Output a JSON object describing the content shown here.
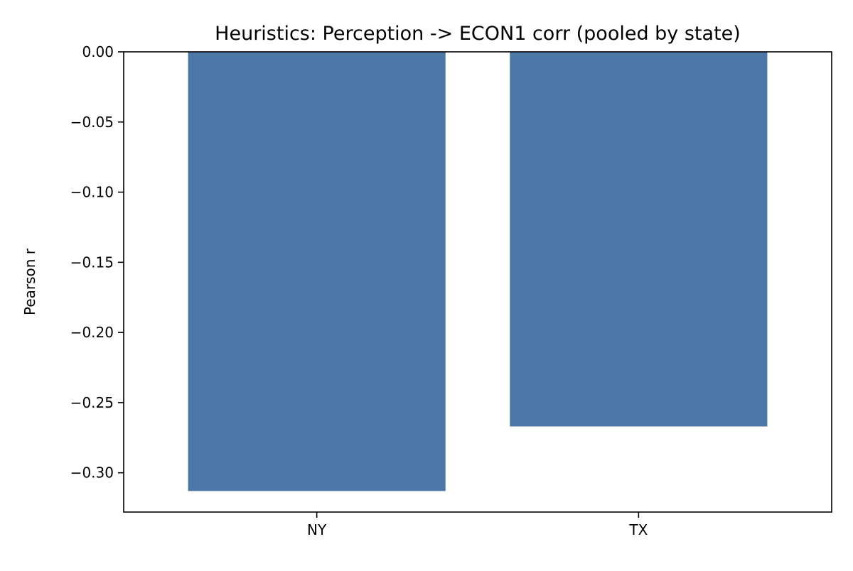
{
  "chart_data": {
    "type": "bar",
    "title": "Heuristics: Perception -> ECON1 corr (pooled by state)",
    "xlabel": "",
    "ylabel": "Pearson r",
    "categories": [
      "NY",
      "TX"
    ],
    "values": [
      -0.313,
      -0.267
    ],
    "ylim": [
      -0.328,
      0.0
    ],
    "yticks": [
      0.0,
      -0.05,
      -0.1,
      -0.15,
      -0.2,
      -0.25,
      -0.3
    ],
    "ytick_labels": [
      "0.00",
      "−0.05",
      "−0.10",
      "−0.15",
      "−0.20",
      "−0.25",
      "−0.30"
    ],
    "grid": false,
    "legend": "none",
    "colors": {
      "bar": "#4c78a8",
      "axis": "#000000",
      "background": "#ffffff"
    }
  }
}
